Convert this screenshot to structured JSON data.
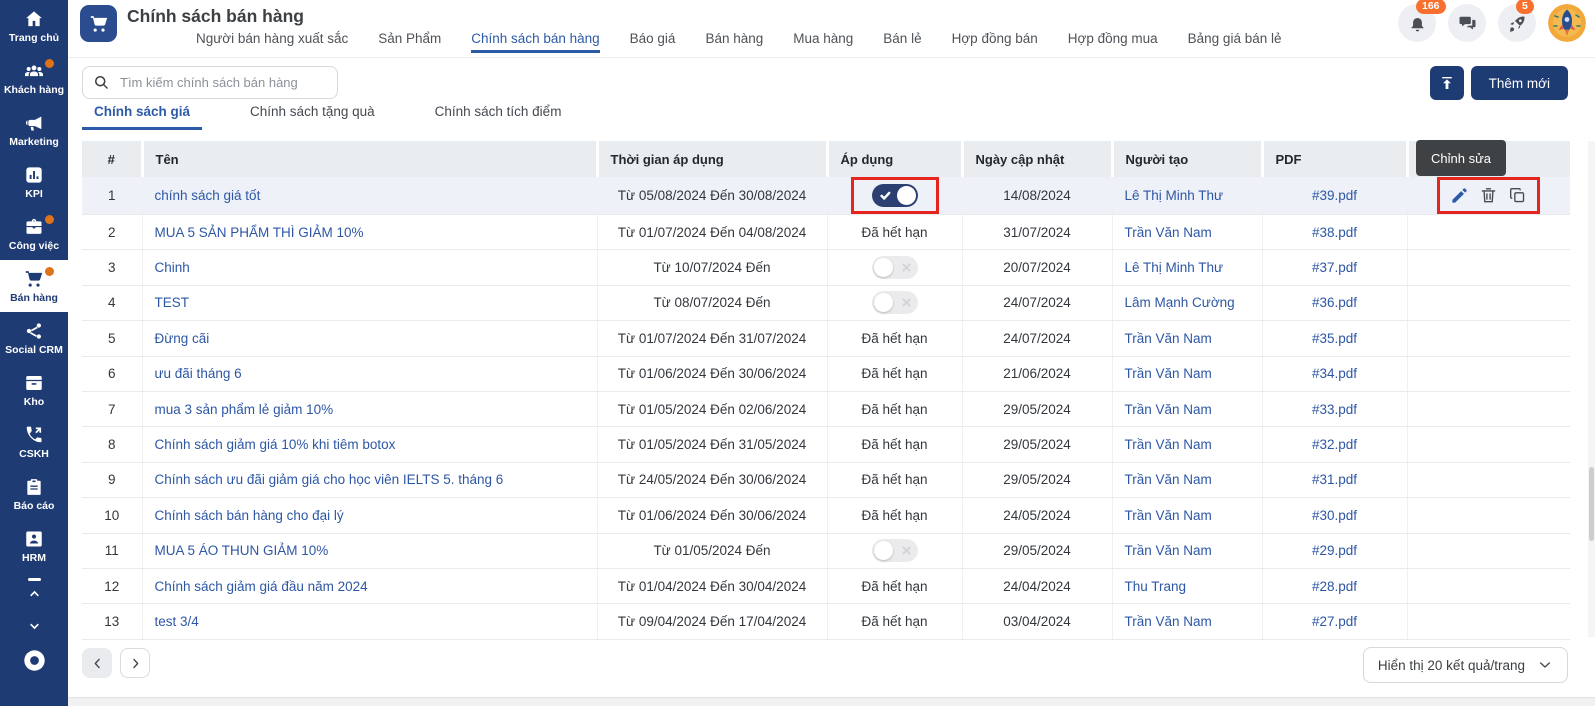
{
  "colors": {
    "accent": "#1e3c74",
    "link": "#2d57a5",
    "badge": "#f7702d",
    "annotation": "#e7251f",
    "sidebar": "#1f3b73"
  },
  "sidebar": {
    "items": [
      {
        "id": "trang-chu",
        "label": "Trang chủ",
        "icon": "home",
        "active": false,
        "dot": false
      },
      {
        "id": "khach-hang",
        "label": "Khách hàng",
        "icon": "users",
        "active": false,
        "dot": true
      },
      {
        "id": "marketing",
        "label": "Marketing",
        "icon": "megaphone",
        "active": false,
        "dot": false
      },
      {
        "id": "kpi",
        "label": "KPI",
        "icon": "kpi",
        "active": false,
        "dot": false
      },
      {
        "id": "cong-viec",
        "label": "Công việc",
        "icon": "briefcase",
        "active": false,
        "dot": true
      },
      {
        "id": "ban-hang",
        "label": "Bán hàng",
        "icon": "cart",
        "active": true,
        "dot": true
      },
      {
        "id": "social-crm",
        "label": "Social CRM",
        "icon": "share",
        "active": false,
        "dot": false
      },
      {
        "id": "kho",
        "label": "Kho",
        "icon": "archive",
        "active": false,
        "dot": false
      },
      {
        "id": "cskh",
        "label": "CSKH",
        "icon": "phone",
        "active": false,
        "dot": false
      },
      {
        "id": "bao-cao",
        "label": "Báo cáo",
        "icon": "clipboard",
        "active": false,
        "dot": false
      },
      {
        "id": "hrm",
        "label": "HRM",
        "icon": "id-badge",
        "active": false,
        "dot": false
      }
    ]
  },
  "header": {
    "title": "Chính sách bán hàng",
    "tabs": [
      {
        "label": "Người bán hàng xuất sắc",
        "active": false
      },
      {
        "label": "Sản Phẩm",
        "active": false
      },
      {
        "label": "Chính sách bán hàng",
        "active": true
      },
      {
        "label": "Báo giá",
        "active": false
      },
      {
        "label": "Bán hàng",
        "active": false
      },
      {
        "label": "Mua hàng",
        "active": false
      },
      {
        "label": "Bán lẻ",
        "active": false
      },
      {
        "label": "Hợp đồng bán",
        "active": false
      },
      {
        "label": "Hợp đồng mua",
        "active": false
      },
      {
        "label": "Bảng giá bán lẻ",
        "active": false
      }
    ],
    "bell_badge": "166",
    "rocket_badge": "5"
  },
  "toolbar": {
    "search_placeholder": "Tìm kiếm chính sách bán hàng",
    "add_label": "Thêm mới"
  },
  "subtabs": [
    {
      "label": "Chính sách giá",
      "active": true
    },
    {
      "label": "Chính sách tặng quà",
      "active": false
    },
    {
      "label": "Chính sách tích điểm",
      "active": false
    }
  ],
  "tooltip": {
    "edit": "Chỉnh sửa"
  },
  "table": {
    "columns": [
      "#",
      "Tên",
      "Thời gian áp dụng",
      "Áp dụng",
      "Ngày cập nhật",
      "Người tạo",
      "PDF",
      ""
    ],
    "expired_label": "Đã hết hạn",
    "rows": [
      {
        "num": "1",
        "name": "chính sách giá tốt",
        "period": "Từ 05/08/2024 Đến 30/08/2024",
        "status": "toggle-on",
        "updated": "14/08/2024",
        "creator": "Lê Thị Minh Thư",
        "pdf": "#39.pdf",
        "highlighted": true,
        "actions": true,
        "annotated": true
      },
      {
        "num": "2",
        "name": "MUA 5 SẢN PHẨM THÌ GIẢM 10%",
        "period": "Từ 01/07/2024 Đến 04/08/2024",
        "status": "expired",
        "updated": "31/07/2024",
        "creator": "Trần Văn Nam",
        "pdf": "#38.pdf"
      },
      {
        "num": "3",
        "name": "Chinh",
        "period": "Từ 10/07/2024 Đến",
        "status": "toggle-off",
        "updated": "20/07/2024",
        "creator": "Lê Thị Minh Thư",
        "pdf": "#37.pdf"
      },
      {
        "num": "4",
        "name": "TEST",
        "period": "Từ 08/07/2024 Đến",
        "status": "toggle-off",
        "updated": "24/07/2024",
        "creator": "Lâm Mạnh Cường",
        "pdf": "#36.pdf"
      },
      {
        "num": "5",
        "name": "Đừng cãi",
        "period": "Từ 01/07/2024 Đến 31/07/2024",
        "status": "expired",
        "updated": "24/07/2024",
        "creator": "Trần Văn Nam",
        "pdf": "#35.pdf"
      },
      {
        "num": "6",
        "name": "ưu đãi tháng 6",
        "period": "Từ 01/06/2024 Đến 30/06/2024",
        "status": "expired",
        "updated": "21/06/2024",
        "creator": "Trần Văn Nam",
        "pdf": "#34.pdf"
      },
      {
        "num": "7",
        "name": "mua 3 sản phẩm lẻ giảm 10%",
        "period": "Từ 01/05/2024 Đến 02/06/2024",
        "status": "expired",
        "updated": "29/05/2024",
        "creator": "Trần Văn Nam",
        "pdf": "#33.pdf"
      },
      {
        "num": "8",
        "name": "Chính sách giảm giá 10% khi tiêm botox",
        "period": "Từ 01/05/2024 Đến 31/05/2024",
        "status": "expired",
        "updated": "29/05/2024",
        "creator": "Trần Văn Nam",
        "pdf": "#32.pdf"
      },
      {
        "num": "9",
        "name": "Chính sách ưu đãi giảm giá cho học viên IELTS 5. tháng 6",
        "period": "Từ 24/05/2024 Đến 30/06/2024",
        "status": "expired",
        "updated": "29/05/2024",
        "creator": "Trần Văn Nam",
        "pdf": "#31.pdf"
      },
      {
        "num": "10",
        "name": "Chính sách bán hàng cho đại lý",
        "period": "Từ 01/06/2024 Đến 30/06/2024",
        "status": "expired",
        "updated": "24/05/2024",
        "creator": "Trần Văn Nam",
        "pdf": "#30.pdf"
      },
      {
        "num": "11",
        "name": "MUA 5 ÁO THUN GIẢM 10%",
        "period": "Từ 01/05/2024 Đến",
        "status": "toggle-off",
        "updated": "29/05/2024",
        "creator": "Trần Văn Nam",
        "pdf": "#29.pdf"
      },
      {
        "num": "12",
        "name": "Chính sách giảm giá đầu năm 2024",
        "period": "Từ 01/04/2024 Đến 30/04/2024",
        "status": "expired",
        "updated": "24/04/2024",
        "creator": "Thu Trang",
        "pdf": "#28.pdf"
      },
      {
        "num": "13",
        "name": "test 3/4",
        "period": "Từ 09/04/2024 Đến 17/04/2024",
        "status": "expired",
        "updated": "03/04/2024",
        "creator": "Trần Văn Nam",
        "pdf": "#27.pdf"
      }
    ]
  },
  "pagination": {
    "page_size_label": "Hiển thị 20 kết quả/trang"
  }
}
